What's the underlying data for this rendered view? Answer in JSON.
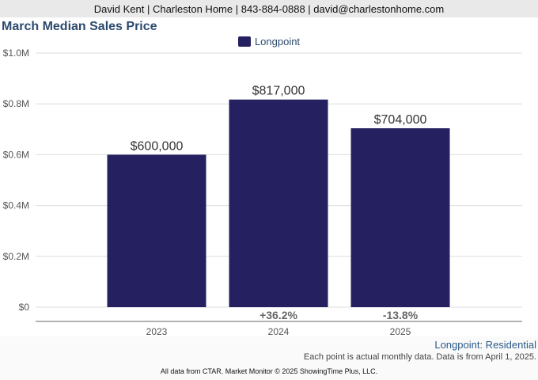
{
  "header": {
    "contact_line": "David Kent | Charleston Home | 843-884-0888 | david@charlestonhome.com"
  },
  "colors": {
    "bar": "#252160",
    "grid": "#dddddd",
    "axis": "#666666",
    "title": "#2c4a6e"
  },
  "chart_data": {
    "type": "bar",
    "title": "March Median Sales Price",
    "categories": [
      "2023",
      "2024",
      "2025"
    ],
    "series": [
      {
        "name": "Longpoint",
        "values": [
          600000,
          817000,
          704000
        ],
        "value_labels": [
          "$600,000",
          "$817,000",
          "$704,000"
        ]
      }
    ],
    "change_labels": [
      "",
      "+36.2%",
      "-13.8%"
    ],
    "ylim": [
      0,
      1000000
    ],
    "yticks": [
      0,
      200000,
      400000,
      600000,
      800000,
      1000000
    ],
    "ytick_labels": [
      "$0",
      "$0.2M",
      "$0.4M",
      "$0.6M",
      "$0.8M",
      "$1.0M"
    ],
    "grid": true,
    "legend_position": "top-center",
    "xlabel": "",
    "ylabel": ""
  },
  "footer": {
    "region_label": "Longpoint: Residential",
    "note": "Each point is actual monthly data. Data is from April 1, 2025.",
    "source": "All data from CTAR. Market Monitor © 2025 ShowingTime Plus, LLC."
  }
}
